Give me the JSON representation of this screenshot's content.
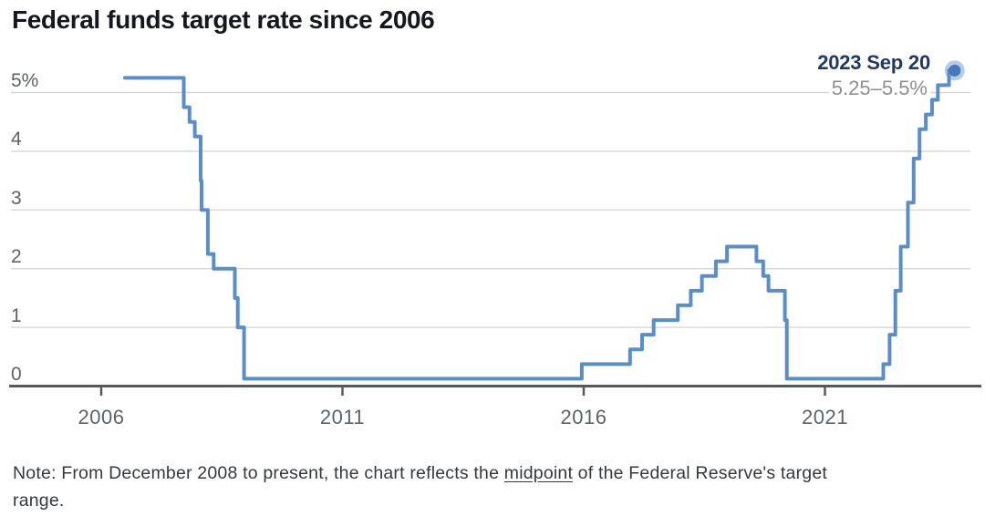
{
  "title": "Federal funds target rate since 2006",
  "annotation": {
    "date": "2023 Sep 20",
    "range": "5.25–5.5%"
  },
  "y_axis": {
    "labels": [
      "5%",
      "4",
      "3",
      "2",
      "1",
      "0"
    ],
    "values": [
      5,
      4,
      3,
      2,
      1,
      0
    ]
  },
  "x_axis": {
    "labels": [
      "2006",
      "2011",
      "2016",
      "2021"
    ],
    "values": [
      2006,
      2011,
      2016,
      2021
    ]
  },
  "note": {
    "line1_prefix": "Note: From December 2008 to present, the chart reflects the ",
    "line1_underlined": "midpoint",
    "line1_suffix": " of the Federal Reserve's target",
    "line2": "range."
  },
  "colors": {
    "line": "#5b8ec7",
    "end_dot": "#4679b9",
    "end_dot_halo": "rgba(91,142,199,0.45)",
    "title": "#16181d",
    "annotation_date": "#223a63",
    "annotation_range": "#8d9091",
    "axis_labels": "#5f6265",
    "gridline": "#d7d7d7",
    "axis_line": "#56585a",
    "note_text": "#36393c",
    "background": "#ffffff"
  },
  "chart_data": {
    "type": "line",
    "step": true,
    "title": "Federal funds target rate since 2006",
    "xlabel": "",
    "ylabel": "",
    "x_range": [
      2005.9,
      2024.1
    ],
    "y_range": [
      0,
      5.5
    ],
    "x_ticks": [
      2006,
      2011,
      2016,
      2021
    ],
    "y_ticks": [
      0,
      1,
      2,
      3,
      4,
      5
    ],
    "grid": "horizontal",
    "legend": "none",
    "series": [
      {
        "name": "Federal funds target rate (midpoint of target range since Dec 2008)",
        "units": "percent",
        "points": [
          [
            2006.49,
            5.25
          ],
          [
            2007.71,
            4.75
          ],
          [
            2007.83,
            4.5
          ],
          [
            2007.94,
            4.25
          ],
          [
            2008.06,
            3.5
          ],
          [
            2008.08,
            3.0
          ],
          [
            2008.21,
            2.25
          ],
          [
            2008.33,
            2.0
          ],
          [
            2008.77,
            1.5
          ],
          [
            2008.83,
            1.0
          ],
          [
            2008.96,
            0.125
          ],
          [
            2015.96,
            0.375
          ],
          [
            2016.96,
            0.625
          ],
          [
            2017.21,
            0.875
          ],
          [
            2017.45,
            1.125
          ],
          [
            2017.95,
            1.375
          ],
          [
            2018.22,
            1.625
          ],
          [
            2018.45,
            1.875
          ],
          [
            2018.74,
            2.125
          ],
          [
            2018.97,
            2.375
          ],
          [
            2019.58,
            2.125
          ],
          [
            2019.72,
            1.875
          ],
          [
            2019.83,
            1.625
          ],
          [
            2020.17,
            1.125
          ],
          [
            2020.21,
            0.125
          ],
          [
            2022.21,
            0.375
          ],
          [
            2022.34,
            0.875
          ],
          [
            2022.46,
            1.625
          ],
          [
            2022.57,
            2.375
          ],
          [
            2022.72,
            3.125
          ],
          [
            2022.84,
            3.875
          ],
          [
            2022.96,
            4.375
          ],
          [
            2023.09,
            4.625
          ],
          [
            2023.22,
            4.875
          ],
          [
            2023.34,
            5.125
          ],
          [
            2023.57,
            5.375
          ]
        ]
      }
    ],
    "end": {
      "year": 2023.69,
      "rate": 5.375
    },
    "annotations": [
      {
        "x": 2023.69,
        "y": 5.375,
        "text": "2023 Sep 20",
        "subtext": "5.25–5.5%"
      }
    ]
  }
}
